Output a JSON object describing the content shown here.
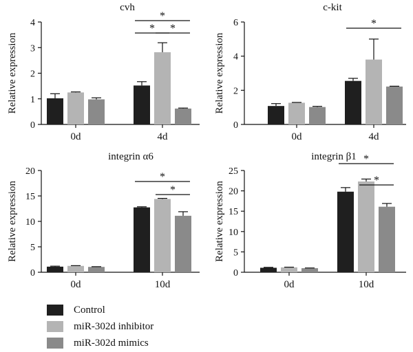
{
  "chart_data": [
    {
      "type": "bar",
      "title": "cvh",
      "xlabel": "",
      "ylabel": "Relative expression",
      "categories": [
        "0d",
        "4d"
      ],
      "ylim": [
        0,
        4
      ],
      "yticks": [
        0,
        1,
        2,
        3,
        4
      ],
      "series": [
        {
          "name": "Control",
          "values": [
            1.02,
            1.52
          ],
          "errors": [
            0.18,
            0.15
          ]
        },
        {
          "name": "miR-302d inhibitor",
          "values": [
            1.25,
            2.82
          ],
          "errors": [
            0.02,
            0.37
          ]
        },
        {
          "name": "miR-302d mimics",
          "values": [
            0.98,
            0.62
          ],
          "errors": [
            0.06,
            0.02
          ]
        }
      ],
      "significance": [
        {
          "group": 1,
          "from": 0,
          "to": 2,
          "label": "*"
        },
        {
          "group": 1,
          "from": 0,
          "to": 1,
          "label": "*"
        },
        {
          "group": 1,
          "from": 1,
          "to": 2,
          "label": "*"
        }
      ]
    },
    {
      "type": "bar",
      "title": "c-kit",
      "xlabel": "",
      "ylabel": "Relative expression",
      "categories": [
        "0d",
        "4d"
      ],
      "ylim": [
        0,
        6
      ],
      "yticks": [
        0,
        2,
        4,
        6
      ],
      "series": [
        {
          "name": "Control",
          "values": [
            1.08,
            2.55
          ],
          "errors": [
            0.14,
            0.15
          ]
        },
        {
          "name": "miR-302d inhibitor",
          "values": [
            1.27,
            3.8
          ],
          "errors": [
            0.02,
            1.2
          ]
        },
        {
          "name": "miR-302d mimics",
          "values": [
            1.02,
            2.22
          ],
          "errors": [
            0.04,
            0.02
          ]
        }
      ],
      "significance": [
        {
          "group": 1,
          "from": 0,
          "to": 2,
          "label": "*"
        }
      ]
    },
    {
      "type": "bar",
      "title": "integrin α6",
      "xlabel": "",
      "ylabel": "Relative expression",
      "categories": [
        "0d",
        "10d"
      ],
      "ylim": [
        0,
        20
      ],
      "yticks": [
        0,
        5,
        10,
        15,
        20
      ],
      "series": [
        {
          "name": "Control",
          "values": [
            1.1,
            12.75
          ],
          "errors": [
            0.1,
            0.12
          ]
        },
        {
          "name": "miR-302d inhibitor",
          "values": [
            1.25,
            14.4
          ],
          "errors": [
            0.05,
            0.12
          ]
        },
        {
          "name": "miR-302d mimics",
          "values": [
            1.05,
            11.1
          ],
          "errors": [
            0.05,
            0.8
          ]
        }
      ],
      "significance": [
        {
          "group": 1,
          "from": 0,
          "to": 2,
          "label": "*"
        },
        {
          "group": 1,
          "from": 1,
          "to": 2,
          "label": "*"
        }
      ]
    },
    {
      "type": "bar",
      "title": "integrin β1",
      "xlabel": "",
      "ylabel": "Relative expression",
      "categories": [
        "0d",
        "10d"
      ],
      "ylim": [
        0,
        25
      ],
      "yticks": [
        0,
        5,
        10,
        15,
        20,
        25
      ],
      "series": [
        {
          "name": "Control",
          "values": [
            1.1,
            19.8
          ],
          "errors": [
            0.1,
            1.0
          ]
        },
        {
          "name": "miR-302d inhibitor",
          "values": [
            1.2,
            22.3
          ],
          "errors": [
            0.05,
            0.6
          ]
        },
        {
          "name": "miR-302d mimics",
          "values": [
            1.0,
            16.1
          ],
          "errors": [
            0.05,
            0.8
          ]
        }
      ],
      "significance": [
        {
          "group": 1,
          "from": 0,
          "to": 2,
          "label": "*"
        },
        {
          "group": 1,
          "from": 1,
          "to": 2,
          "label": "*"
        }
      ]
    }
  ],
  "legend": {
    "placement": "bottom-left",
    "items": [
      {
        "label": "Control",
        "color": "#1f1f1f"
      },
      {
        "label": "miR-302d inhibitor",
        "color": "#b4b4b4"
      },
      {
        "label": "miR-302d mimics",
        "color": "#8a8a8a"
      }
    ]
  },
  "colors": {
    "axis": "#111111",
    "error_bar": "#111111"
  }
}
